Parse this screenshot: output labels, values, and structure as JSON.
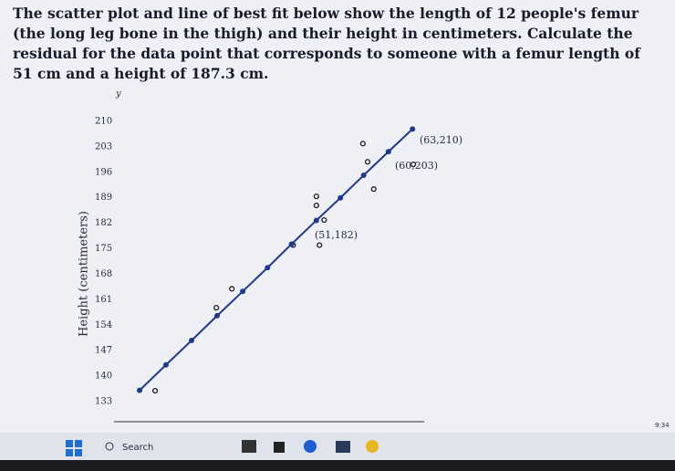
{
  "question": "The scatter plot and line of best fit below show the length of 12 people's femur (the long leg bone in the thigh) and their height in centimeters. Calculate the residual for the data point that corresponds to someone with a femur length of 51 cm and a height of 187.3 cm.",
  "chart_data": {
    "type": "scatter",
    "y_axis_symbol": "y",
    "ylabel": "Height (centimeters)",
    "xlim": [
      25,
      65
    ],
    "ylim": [
      133,
      210
    ],
    "yticks": [
      133,
      140,
      147,
      154,
      161,
      168,
      175,
      182,
      189,
      196,
      203,
      210
    ],
    "grid": false,
    "series": [
      {
        "kind": "points",
        "color": "#222222",
        "x": [
          30.3,
          38.2,
          40.2,
          48.1,
          51.5,
          52.1,
          51.1,
          51.1,
          57.1,
          57.7,
          58.5,
          63.6
        ],
        "values": [
          136,
          158.8,
          164,
          176,
          176,
          182.9,
          186.9,
          189.4,
          203.9,
          198.9,
          191.4,
          198.2
        ]
      },
      {
        "kind": "line",
        "color": "#1e3a8a",
        "x": [
          28.3,
          31.7,
          35,
          38.3,
          41.6,
          44.8,
          47.9,
          51.1,
          54.2,
          57.2,
          60.4,
          63.5
        ],
        "values": [
          136.1,
          143.1,
          149.8,
          156.6,
          163.3,
          169.8,
          176.3,
          182.8,
          189,
          195.2,
          201.7,
          207.9
        ]
      }
    ],
    "annotations": [
      "(63,210)",
      "(60,203)",
      "(51,182)"
    ]
  },
  "taskbar": {
    "search": "Search",
    "time": "9:34"
  }
}
